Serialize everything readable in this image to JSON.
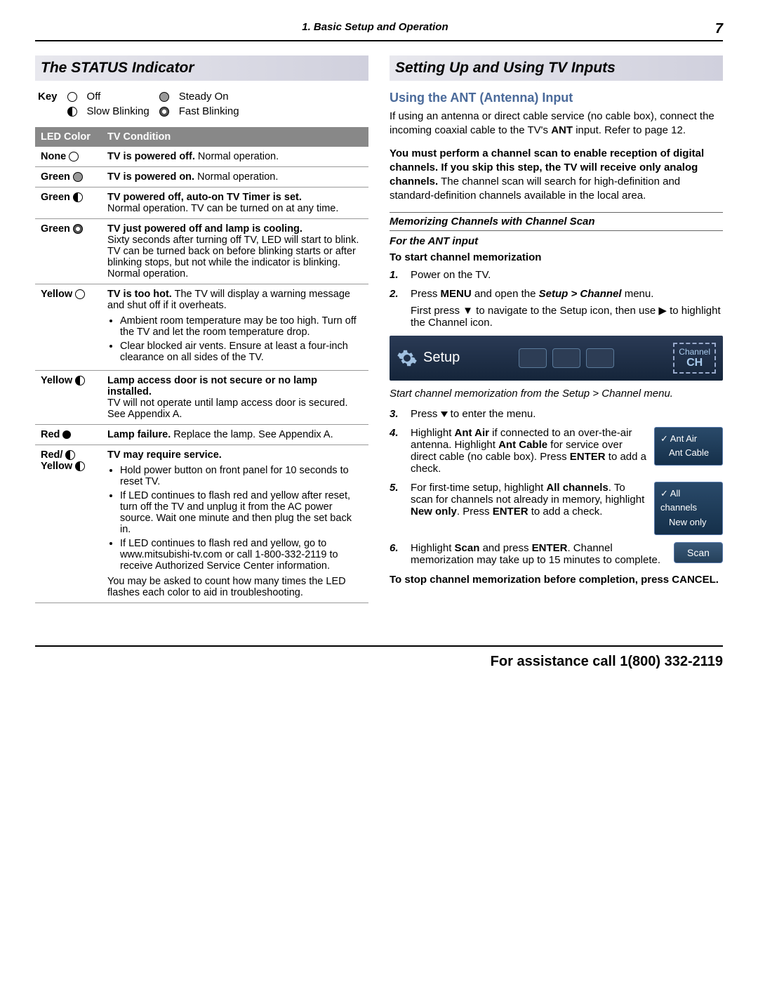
{
  "header": {
    "section": "1.  Basic Setup and Operation",
    "page": "7"
  },
  "left": {
    "title": "The STATUS Indicator",
    "key_label": "Key",
    "legend": {
      "off": "Off",
      "slow": "Slow Blinking",
      "steady": "Steady On",
      "fast": "Fast Blinking"
    },
    "table_head": {
      "c1": "LED Color",
      "c2": "TV Condition"
    },
    "rows": [
      {
        "color": "None",
        "icon": "off",
        "bold": "TV is powered off.",
        "rest": "  Normal operation."
      },
      {
        "color": "Green",
        "icon": "steady",
        "bold": "TV is powered on.",
        "rest": "  Normal operation."
      },
      {
        "color": "Green",
        "icon": "slow",
        "bold": "TV powered off, auto-on TV Timer is set.",
        "rest": "",
        "extra": "Normal operation.  TV can be turned on at any time."
      },
      {
        "color": "Green",
        "icon": "fast",
        "bold": "TV just powered off and lamp is cooling.",
        "rest": "",
        "extra": "Sixty seconds after turning off TV, LED will start to blink.  TV can be turned back on before blinking starts or after blinking stops, but not while the indicator is blinking.  Normal operation."
      },
      {
        "color": "Yellow",
        "icon": "off",
        "bold": "TV is too hot.",
        "rest": "  The TV will display a warning message and shut off if it overheats.",
        "bullets": [
          "Ambient room temperature may be too high.  Turn off the TV and let the room temperature drop.",
          "Clear blocked air vents.  Ensure at least a four-inch clearance on all sides of the TV."
        ]
      },
      {
        "color": "Yellow",
        "icon": "slow",
        "bold": "Lamp access door is not secure or no lamp installed.",
        "rest": "",
        "extra": "TV will not operate until lamp access door is secured.  See Appendix A."
      },
      {
        "color": "Red",
        "icon": "dot",
        "bold": "Lamp failure.",
        "rest": "  Replace the lamp.  See Appendix A."
      },
      {
        "color_lines": [
          "Red/",
          "Yellow"
        ],
        "icon": "half",
        "icon2": "slow",
        "bold": "TV may require service.",
        "rest": "",
        "bullets": [
          "Hold power button on front panel for 10 seconds to reset TV.",
          "If LED continues to flash red and yellow after reset, turn off the TV and unplug it from the AC power source.  Wait one minute and then plug the set back in.",
          "If LED continues to flash red and yellow, go to www.mitsubishi-tv.com or call 1-800-332-2119 to receive Authorized Service Center information."
        ],
        "trailing": "You may be asked to count how many times the LED flashes each color to aid in troubleshooting."
      }
    ]
  },
  "right": {
    "title": "Setting Up and Using TV Inputs",
    "sub_heading": "Using the ANT (Antenna) Input",
    "p1a": "If using an antenna or direct cable service (no cable box), connect the incoming coaxial cable to the TV's ",
    "p1_bold": "ANT",
    "p1b": " input.  Refer to page 12.",
    "p2_bold": "You must perform a channel scan to enable reception of digital channels.  If you skip this step, the TV will receive only analog channels.",
    "p2_rest": "  The channel scan will search for high-definition and standard-definition channels available in the local area.",
    "memo_h": "Memorizing Channels with Channel Scan",
    "for_ant": "For the ANT input",
    "start_h": "To start channel memorization",
    "s1": "Power on the TV.",
    "s2a": "Press ",
    "s2_menu": "MENU",
    "s2b": " and open the ",
    "s2_setup": "Setup > Channel",
    "s2c": " menu.",
    "s2_sub": "First press ▼ to navigate to the Setup icon, then use ▶ to highlight the Channel icon.",
    "menu_label": "Setup",
    "ch_badge": "Channel",
    "caption": "Start channel memorization from the Setup > Channel menu.",
    "s3a": "Press ",
    "s3b": " to enter the menu.",
    "s4a": "Highlight ",
    "s4_ant_air": "Ant Air",
    "s4b": " if connected to an over-the-air antenna.  Highlight ",
    "s4_ant_cable": "Ant Cable",
    "s4c": " for service over direct cable (no cable box).  Press ",
    "s4_enter": "ENTER",
    "s4d": " to add a check.",
    "box1_l1": "Ant Air",
    "box1_l2": "Ant Cable",
    "s5a": "For first-time setup, highlight ",
    "s5_all": "All channels",
    "s5b": ".  To scan for channels not already in memory, highlight ",
    "s5_new": "New only",
    "s5c": ".  Press ",
    "s5_enter": "ENTER",
    "s5d": " to add a check.",
    "box2_l1": "All channels",
    "box2_l2": "New only",
    "s6a": "Highlight ",
    "s6_scan": "Scan",
    "s6b": " and press ",
    "s6_enter": "ENTER",
    "s6c": ".  Channel memorization may take up to 15 minutes to complete.",
    "scan_btn": "Scan",
    "stop_bold": "To stop channel memorization before completion, press ",
    "stop_cancel": "CANCEL",
    "stop_end": "."
  },
  "footer": "For assistance call 1(800) 332-2119"
}
